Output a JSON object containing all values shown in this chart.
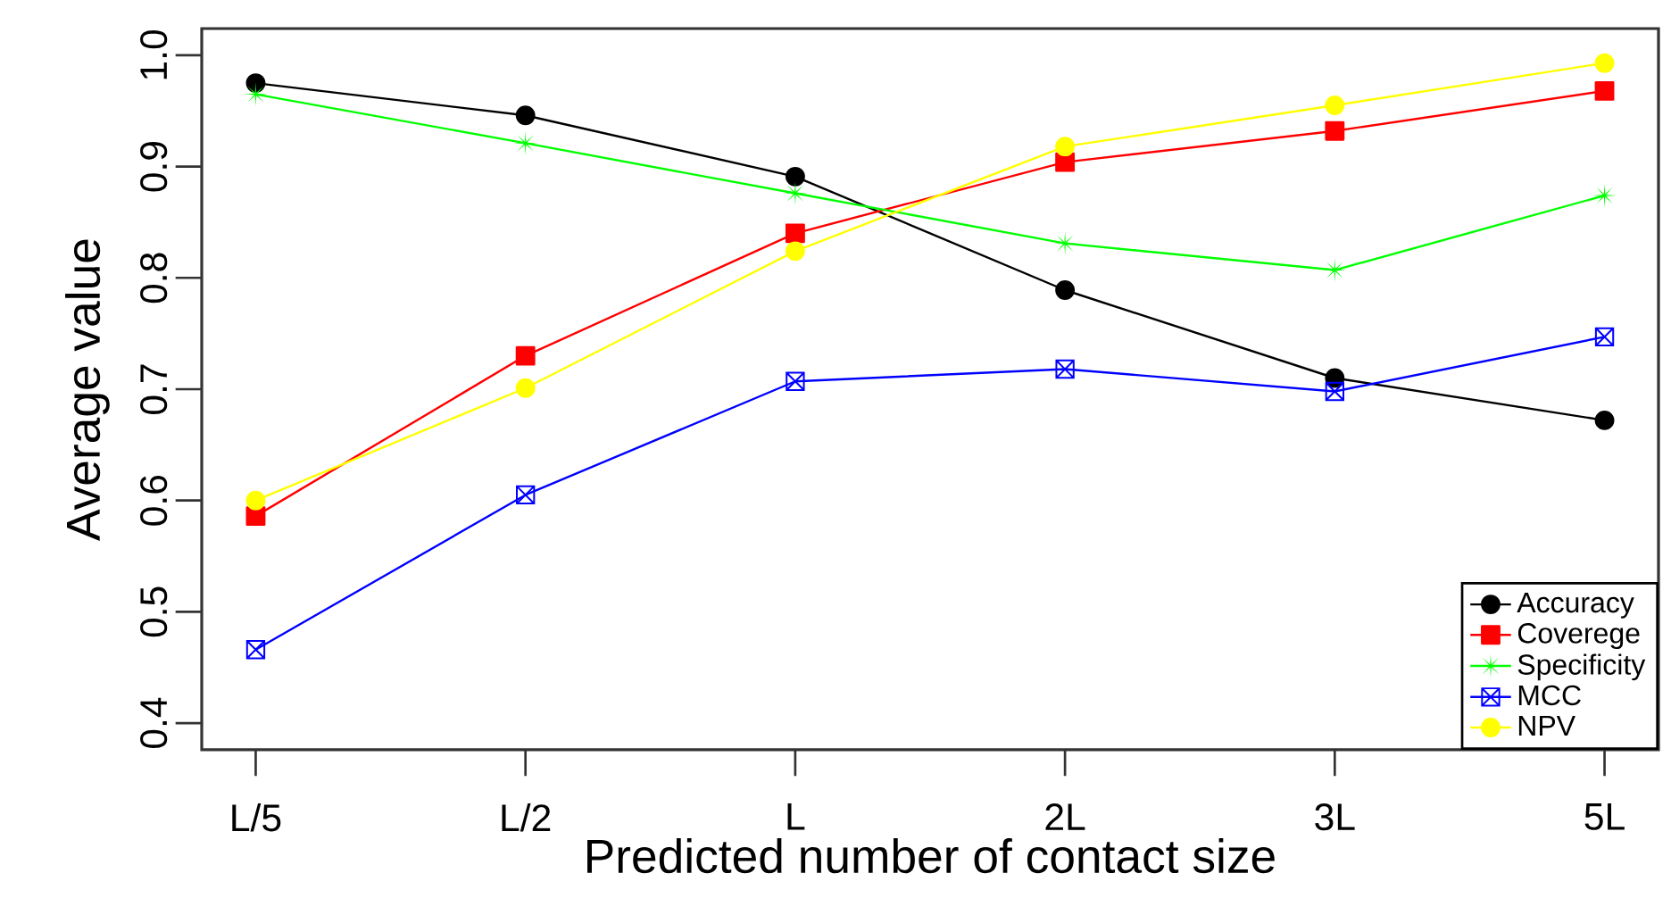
{
  "chart_data": {
    "type": "line",
    "xlabel": "Predicted number of contact size",
    "ylabel": "Average value",
    "categories": [
      "L/5",
      "L/2",
      "L",
      "2L",
      "3L",
      "5L"
    ],
    "series": [
      {
        "name": "Accuracy",
        "color": "#000000",
        "marker": "circle",
        "values": [
          0.975,
          0.946,
          0.891,
          0.789,
          0.71,
          0.672
        ]
      },
      {
        "name": "Coverege",
        "color": "#ff0000",
        "marker": "square",
        "values": [
          0.586,
          0.73,
          0.84,
          0.904,
          0.932,
          0.968
        ]
      },
      {
        "name": "Specificity",
        "color": "#00ff00",
        "marker": "star",
        "values": [
          0.965,
          0.921,
          0.876,
          0.831,
          0.807,
          0.874
        ]
      },
      {
        "name": "MCC",
        "color": "#0000ff",
        "marker": "cross",
        "values": [
          0.466,
          0.605,
          0.707,
          0.718,
          0.698,
          0.747
        ]
      },
      {
        "name": "NPV",
        "color": "#ffff00",
        "marker": "circle",
        "values": [
          0.6,
          0.701,
          0.824,
          0.918,
          0.955,
          0.993
        ]
      }
    ],
    "ylim": [
      0.376,
      1.024
    ],
    "yticks": [
      0.4,
      0.5,
      0.6,
      0.7,
      0.8,
      0.9,
      {
        "value": 1.0,
        "label": "1.0"
      }
    ],
    "grid": false,
    "legend": "bottom right",
    "line_style": "solid"
  }
}
